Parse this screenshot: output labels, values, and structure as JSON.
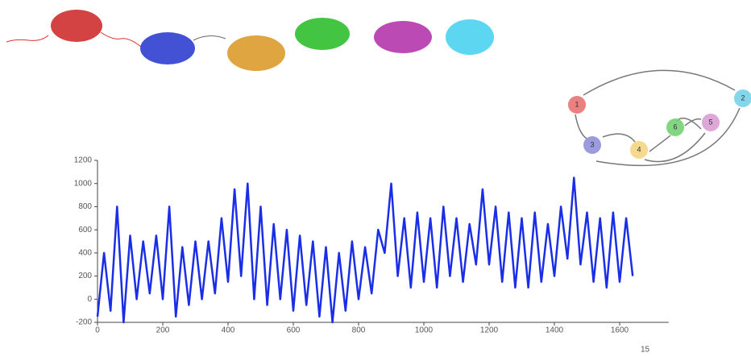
{
  "chart_data": {
    "type": "line",
    "x": [
      0,
      20,
      40,
      60,
      80,
      100,
      120,
      140,
      160,
      180,
      200,
      220,
      240,
      260,
      280,
      300,
      320,
      340,
      360,
      380,
      400,
      420,
      440,
      460,
      480,
      500,
      520,
      540,
      560,
      580,
      600,
      620,
      640,
      660,
      680,
      700,
      720,
      740,
      760,
      780,
      800,
      820,
      840,
      860,
      880,
      900,
      920,
      940,
      960,
      980,
      1000,
      1020,
      1040,
      1060,
      1080,
      1100,
      1120,
      1140,
      1160,
      1180,
      1200,
      1220,
      1240,
      1260,
      1280,
      1300,
      1320,
      1340,
      1360,
      1380,
      1400,
      1420,
      1440,
      1460,
      1480,
      1500,
      1520,
      1540,
      1560,
      1580,
      1600,
      1620,
      1640
    ],
    "values": [
      -150,
      400,
      -100,
      800,
      -200,
      550,
      0,
      500,
      50,
      550,
      0,
      800,
      -150,
      450,
      -50,
      500,
      0,
      500,
      50,
      700,
      150,
      950,
      200,
      1000,
      0,
      800,
      -50,
      650,
      0,
      600,
      -100,
      550,
      -50,
      500,
      -150,
      450,
      -200,
      400,
      -100,
      500,
      0,
      450,
      50,
      600,
      400,
      1000,
      200,
      700,
      100,
      750,
      150,
      700,
      100,
      800,
      200,
      700,
      150,
      650,
      300,
      950,
      300,
      800,
      150,
      750,
      100,
      700,
      100,
      750,
      150,
      650,
      200,
      800,
      350,
      1050,
      300,
      750,
      150,
      700,
      100,
      750,
      150,
      700,
      200
    ],
    "color": "#1a2ee8",
    "xlim": [
      0,
      1750
    ],
    "ylim": [
      -200,
      1200
    ],
    "xticks": [
      0,
      200,
      400,
      600,
      800,
      1000,
      1200,
      1400,
      1600
    ],
    "yticks": [
      -200,
      0,
      200,
      400,
      600,
      800,
      1000,
      1200
    ]
  },
  "diagram": {
    "nodes": [
      {
        "label": "1"
      },
      {
        "label": "2"
      },
      {
        "label": "3"
      },
      {
        "label": "4"
      },
      {
        "label": "5"
      },
      {
        "label": "6"
      }
    ]
  },
  "page_number": "15"
}
